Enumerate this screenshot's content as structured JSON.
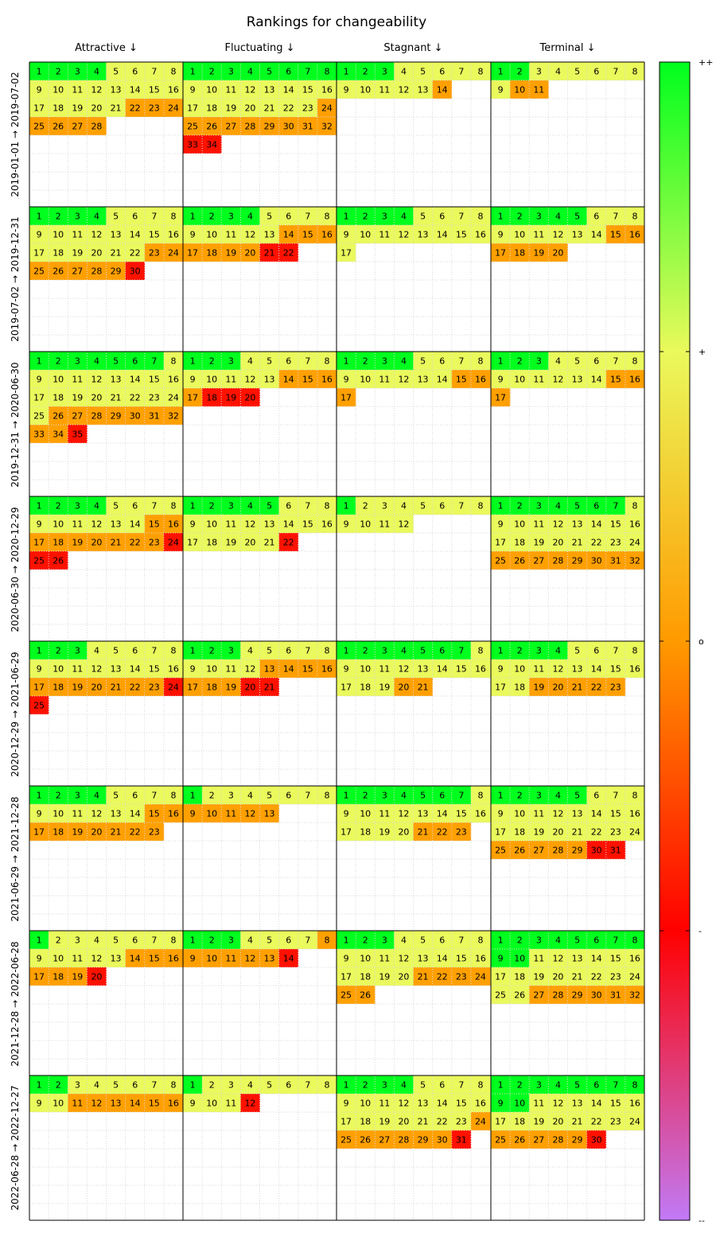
{
  "title": "Rankings for changeability",
  "columns": [
    "Attractive ↓",
    "Fluctuating ↓",
    "Stagnant ↓",
    "Terminal ↓"
  ],
  "periods": [
    "2019-01-01 → 2019-07-02",
    "2019-07-02 → 2019-12-31",
    "2019-12-31 → 2020-06-30",
    "2020-06-30 → 2020-12-29",
    "2020-12-29 → 2021-06-29",
    "2021-06-29 → 2021-12-28",
    "2021-12-28 → 2022-06-28",
    "2022-06-28 → 2022-12-27"
  ],
  "colorbar": {
    "labels": [
      "++",
      "+",
      "o",
      "-",
      "--"
    ],
    "stops": [
      "#00ff1e",
      "#eaf95c",
      "#ff9a00",
      "#ff0000",
      "#c17af6"
    ]
  },
  "legend_colors": {
    "G": "#00ff1e",
    "Y": "#eaf95c",
    "O": "#ffa000",
    "R": "#ff1100"
  },
  "chart_data": {
    "type": "heatmap",
    "title": "Rankings for changeability",
    "description_of_cells": "each cell holds a rank number; the code string gives one color category per rank in order (G = ++, Y = +, O = o, R = -)",
    "cells": [
      [
        "GGGGYYYYYYYYYYYYYYYYYOOOOOOO",
        "GGGGGGGGYYYYYYYYYYYYYYYOOOOOOOOORR",
        "GGGYYYYYYYYYYO",
        "GGYYYYYYYOO"
      ],
      [
        "GGGGYYYYYYYYYYYYYYYYYYOOOOOOOR",
        "GGGGYYYYYYYYYOOOOOOORR",
        "GGGGYYYYYYYYYYYYY",
        "GGGGGYYYYYYYYYOOOOOO"
      ],
      [
        "GGGGGGGYYYYYYYYYYYYYYYYYYOOOOOOOOOR",
        "GGGYYYYYYYYYYOOOORRR",
        "GGGGYYYYYYYYYYOOO",
        "GGGYYYYYYYYYYYOOO"
      ],
      [
        "GGGGYYYYYYYYYYOOOOOOOOORRR",
        "GGGGGYYYYYYYYYYYYYYYYR",
        "GYYYYYYYYYYY",
        "GGGGGGGYYYYYYYYYYYYYYYYYOOOOOOOO"
      ],
      [
        "GGGYYYYYYYYYYYYYOOOOOOORR",
        "GGGYYYYYYYYYOOOOOOORR",
        "GGGGGGGYYYYYYYYYYYYOO",
        "GGGGYYYYYYYYYYYYYYOOOOO"
      ],
      [
        "GGGGYYYYYYYYYYOOOOOOOOO",
        "GYYYYYYYOOOOO",
        "GGGGGGGYYYYYYYYYYYYYOOO",
        "GGGGGYYYYYYYYYYYYYYYYYYYOOOOORR"
      ],
      [
        "GYYYYYYYYYYYYOOOOOOR",
        "GGGYYYYOOOOOOR",
        "GGGYYYYYYYYYYYYYYYYYOOOOOO",
        "GGGGGGGGGGYYYYYYYYYYYYYYYYOOOOOO"
      ],
      [
        "GGYYYYYYYYOOOOOO",
        "GYYYYYYYYYYR",
        "GGGGYYYYYYYYYYYYYYYYYYYOOOOOOOR",
        "GGGGGGGGGGYYYYYYYYYYYYYYOOOOOR"
      ]
    ]
  }
}
